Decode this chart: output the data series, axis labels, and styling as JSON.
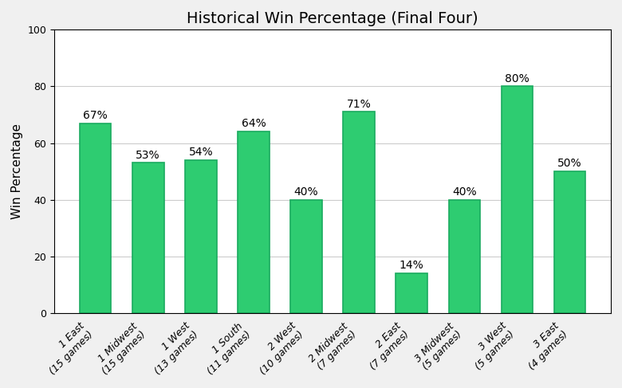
{
  "title": "Historical Win Percentage (Final Four)",
  "ylabel": "Win Percentage",
  "categories": [
    "1 East\n(15 games)",
    "1 Midwest\n(15 games)",
    "1 West\n(13 games)",
    "1 South\n(11 games)",
    "2 West\n(10 games)",
    "2 Midwest\n(7 games)",
    "2 East\n(7 games)",
    "3 Midwest\n(5 games)",
    "3 West\n(5 games)",
    "3 East\n(4 games)"
  ],
  "values": [
    67,
    53,
    54,
    64,
    40,
    71,
    14,
    40,
    80,
    50
  ],
  "bar_color": "#2ecc71",
  "bar_edge_color": "#1aab5f",
  "ylim": [
    0,
    100
  ],
  "yticks": [
    0,
    20,
    40,
    60,
    80,
    100
  ],
  "label_fontsize": 10,
  "title_fontsize": 14,
  "ylabel_fontsize": 11,
  "tick_fontsize": 9,
  "figure_facecolor": "#f0f0f0",
  "axes_facecolor": "#ffffff"
}
